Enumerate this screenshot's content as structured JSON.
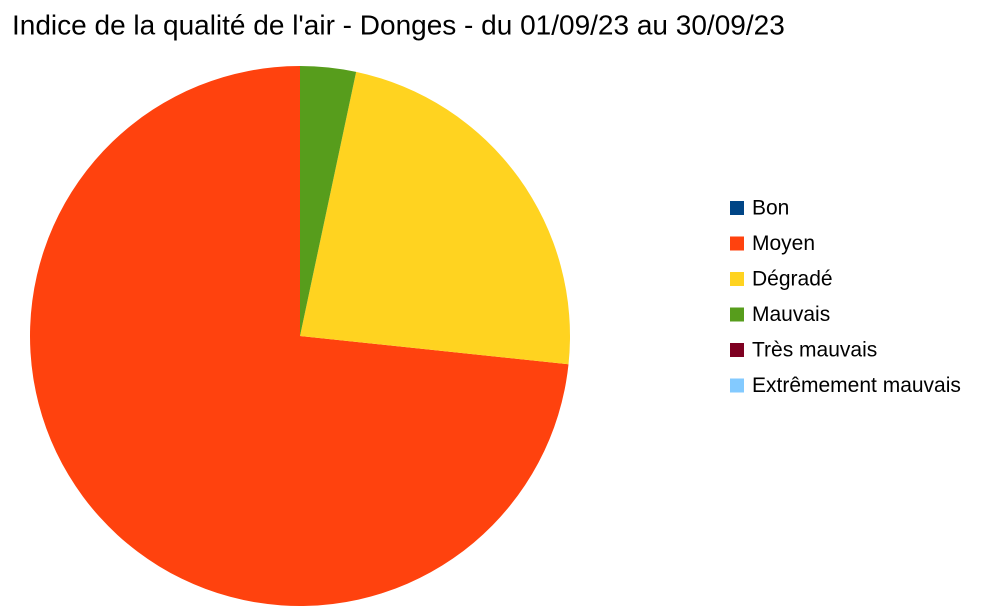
{
  "chart_data": {
    "type": "pie",
    "title": "Indice de la qualité de l'air - Donges - du 01/09/23 au 30/09/23",
    "categories": [
      "Bon",
      "Moyen",
      "Dégradé",
      "Mauvais",
      "Très mauvais",
      "Extrêmement mauvais"
    ],
    "values": [
      0,
      22,
      7,
      1,
      0,
      0
    ],
    "colors": [
      "#004586",
      "#ff420e",
      "#ffd320",
      "#579d1c",
      "#7e0021",
      "#83caff"
    ],
    "legend": "right"
  }
}
